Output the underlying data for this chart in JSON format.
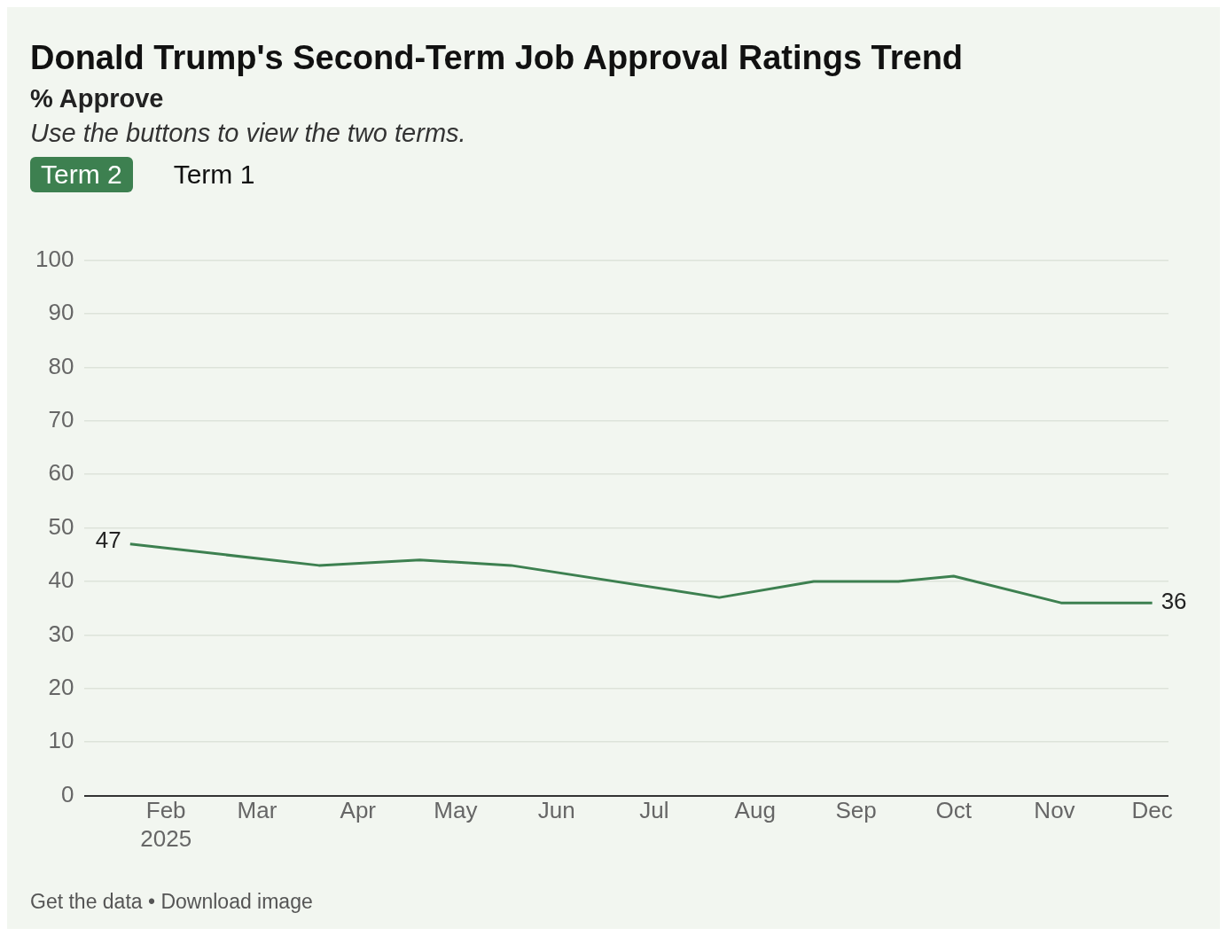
{
  "chart_data": {
    "type": "line",
    "title": "Donald Trump's Second-Term Job Approval Ratings Trend",
    "subtitle": "% Approve",
    "annotations": [
      "Use the buttons to view the two terms.",
      "Term 2",
      "Term 1",
      "Get the data • Download image"
    ],
    "x": [
      "2025-01-21",
      "2025-03-20",
      "2025-04-20",
      "2025-05-18",
      "2025-07-21",
      "2025-08-19",
      "2025-09-14",
      "2025-10-01",
      "2025-11-03",
      "2025-12-01"
    ],
    "series": [
      {
        "color": "#3d8050",
        "values": [
          47,
          43,
          44,
          43,
          37,
          40,
          40,
          41,
          36,
          36
        ],
        "value_labels": [
          "47",
          null,
          null,
          null,
          null,
          null,
          null,
          null,
          null,
          "36"
        ]
      }
    ],
    "xlim": [
      "2025-01-07",
      "2025-12-06"
    ],
    "xticks": [
      {
        "value": "2025-02-01",
        "label": "Feb\n2025"
      },
      {
        "value": "2025-03-01",
        "label": "Mar"
      },
      {
        "value": "2025-04-01",
        "label": "Apr"
      },
      {
        "value": "2025-05-01",
        "label": "May"
      },
      {
        "value": "2025-06-01",
        "label": "Jun"
      },
      {
        "value": "2025-07-01",
        "label": "Jul"
      },
      {
        "value": "2025-08-01",
        "label": "Aug"
      },
      {
        "value": "2025-09-01",
        "label": "Sep"
      },
      {
        "value": "2025-10-01",
        "label": "Oct"
      },
      {
        "value": "2025-11-01",
        "label": "Nov"
      },
      {
        "value": "2025-12-01",
        "label": "Dec"
      }
    ],
    "ylim": [
      0,
      100
    ],
    "yticks": [
      0,
      10,
      20,
      30,
      40,
      50,
      60,
      70,
      80,
      90,
      100
    ],
    "grid": "y",
    "legend": false,
    "marker": "none",
    "line_style": "solid"
  }
}
